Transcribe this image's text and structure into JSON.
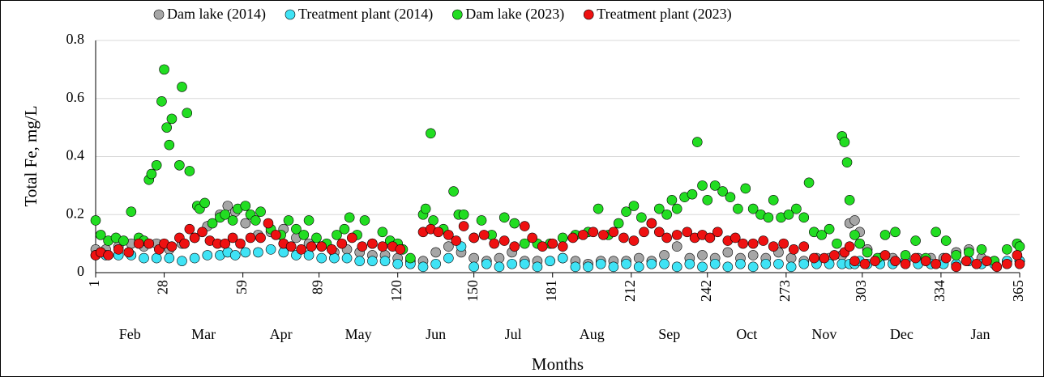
{
  "chart_data": {
    "type": "scatter",
    "y_label": "Total Fe, mg/L",
    "x_label": "Months",
    "xlim": [
      1,
      365
    ],
    "xticks": [
      1,
      28,
      59,
      89,
      120,
      150,
      181,
      212,
      242,
      273,
      303,
      334,
      365
    ],
    "ylim": [
      0,
      0.8
    ],
    "yticks": [
      0,
      0.2,
      0.4,
      0.6,
      0.8
    ],
    "grid": true,
    "legend": "top",
    "months": [
      "Feb",
      "Mar",
      "Apr",
      "May",
      "Jun",
      "Jul",
      "Aug",
      "Sep",
      "Oct",
      "Nov",
      "Dec",
      "Jan"
    ],
    "series": [
      {
        "name": "Dam lake (2014)",
        "color": "#a6a6a6",
        "x": [
          1,
          5,
          10,
          15,
          20,
          25,
          30,
          35,
          40,
          45,
          50,
          53,
          56,
          60,
          65,
          70,
          75,
          80,
          85,
          90,
          95,
          100,
          105,
          110,
          115,
          120,
          125,
          130,
          135,
          140,
          145,
          150,
          155,
          160,
          165,
          170,
          175,
          180,
          185,
          190,
          195,
          200,
          205,
          210,
          215,
          220,
          225,
          230,
          235,
          240,
          245,
          250,
          255,
          260,
          265,
          270,
          275,
          280,
          285,
          290,
          295,
          298,
          300,
          302,
          305,
          310,
          315,
          320,
          325,
          330,
          335,
          340,
          345,
          350,
          355,
          360,
          365
        ],
        "values": [
          0.08,
          0.08,
          0.09,
          0.1,
          0.09,
          0.1,
          0.08,
          0.1,
          0.12,
          0.16,
          0.2,
          0.23,
          0.21,
          0.17,
          0.13,
          0.14,
          0.15,
          0.12,
          0.1,
          0.09,
          0.07,
          0.08,
          0.07,
          0.06,
          0.06,
          0.05,
          0.04,
          0.04,
          0.07,
          0.09,
          0.07,
          0.05,
          0.04,
          0.05,
          0.07,
          0.04,
          0.04,
          0.04,
          0.05,
          0.04,
          0.03,
          0.04,
          0.04,
          0.04,
          0.05,
          0.04,
          0.06,
          0.09,
          0.05,
          0.06,
          0.05,
          0.07,
          0.05,
          0.06,
          0.05,
          0.07,
          0.05,
          0.04,
          0.05,
          0.05,
          0.06,
          0.17,
          0.18,
          0.14,
          0.08,
          0.05,
          0.05,
          0.04,
          0.05,
          0.05,
          0.05,
          0.07,
          0.08,
          0.05,
          0.04,
          0.04,
          0.04
        ]
      },
      {
        "name": "Treatment plant (2014)",
        "color": "#3fe3f5",
        "x": [
          1,
          5,
          10,
          15,
          20,
          25,
          30,
          35,
          40,
          45,
          50,
          53,
          56,
          60,
          65,
          70,
          75,
          80,
          85,
          90,
          95,
          100,
          105,
          110,
          115,
          120,
          125,
          130,
          135,
          140,
          145,
          150,
          155,
          160,
          165,
          170,
          175,
          180,
          185,
          190,
          195,
          200,
          205,
          210,
          215,
          220,
          225,
          230,
          235,
          240,
          245,
          250,
          255,
          260,
          265,
          270,
          275,
          280,
          285,
          290,
          295,
          298,
          300,
          302,
          305,
          310,
          315,
          320,
          325,
          330,
          335,
          340,
          345,
          350,
          355,
          360,
          365
        ],
        "values": [
          0.06,
          0.06,
          0.06,
          0.06,
          0.05,
          0.05,
          0.05,
          0.04,
          0.05,
          0.06,
          0.06,
          0.07,
          0.06,
          0.07,
          0.07,
          0.08,
          0.07,
          0.06,
          0.06,
          0.05,
          0.05,
          0.05,
          0.04,
          0.04,
          0.04,
          0.03,
          0.03,
          0.02,
          0.03,
          0.05,
          0.09,
          0.02,
          0.03,
          0.02,
          0.03,
          0.03,
          0.02,
          0.04,
          0.05,
          0.02,
          0.02,
          0.03,
          0.02,
          0.03,
          0.02,
          0.03,
          0.03,
          0.02,
          0.03,
          0.02,
          0.03,
          0.02,
          0.03,
          0.02,
          0.03,
          0.03,
          0.02,
          0.03,
          0.03,
          0.03,
          0.03,
          0.03,
          0.03,
          0.04,
          0.03,
          0.03,
          0.03,
          0.04,
          0.03,
          0.03,
          0.03,
          0.03,
          0.04,
          0.03,
          0.03,
          0.04,
          0.04
        ]
      },
      {
        "name": "Dam lake (2023)",
        "color": "#22dd22",
        "x": [
          1,
          3,
          6,
          9,
          12,
          15,
          18,
          20,
          22,
          23,
          25,
          27,
          28,
          29,
          30,
          31,
          34,
          35,
          37,
          38,
          41,
          42,
          44,
          47,
          50,
          52,
          55,
          57,
          60,
          62,
          64,
          66,
          70,
          74,
          77,
          80,
          83,
          85,
          88,
          92,
          96,
          99,
          101,
          104,
          107,
          110,
          114,
          117,
          120,
          122,
          125,
          130,
          131,
          133,
          134,
          138,
          142,
          144,
          146,
          150,
          153,
          157,
          162,
          166,
          170,
          175,
          180,
          185,
          190,
          195,
          199,
          203,
          207,
          210,
          213,
          216,
          220,
          223,
          226,
          228,
          230,
          233,
          236,
          238,
          240,
          242,
          245,
          248,
          251,
          254,
          257,
          260,
          263,
          266,
          268,
          271,
          274,
          277,
          280,
          282,
          284,
          287,
          290,
          293,
          295,
          296,
          297,
          298,
          300,
          302,
          305,
          309,
          312,
          316,
          320,
          324,
          328,
          332,
          336,
          340,
          345,
          350,
          355,
          360,
          364,
          365
        ],
        "values": [
          0.18,
          0.13,
          0.11,
          0.12,
          0.11,
          0.21,
          0.12,
          0.11,
          0.32,
          0.34,
          0.37,
          0.59,
          0.7,
          0.5,
          0.44,
          0.53,
          0.37,
          0.64,
          0.55,
          0.35,
          0.23,
          0.22,
          0.24,
          0.17,
          0.19,
          0.2,
          0.18,
          0.22,
          0.23,
          0.2,
          0.18,
          0.21,
          0.15,
          0.13,
          0.18,
          0.15,
          0.13,
          0.18,
          0.12,
          0.1,
          0.13,
          0.15,
          0.19,
          0.13,
          0.18,
          0.1,
          0.14,
          0.11,
          0.1,
          0.08,
          0.05,
          0.2,
          0.22,
          0.48,
          0.18,
          0.15,
          0.28,
          0.2,
          0.2,
          0.12,
          0.18,
          0.13,
          0.19,
          0.17,
          0.1,
          0.1,
          0.1,
          0.12,
          0.13,
          0.14,
          0.22,
          0.13,
          0.17,
          0.21,
          0.23,
          0.19,
          0.17,
          0.22,
          0.2,
          0.25,
          0.22,
          0.26,
          0.27,
          0.45,
          0.3,
          0.25,
          0.3,
          0.28,
          0.26,
          0.22,
          0.29,
          0.22,
          0.2,
          0.19,
          0.25,
          0.19,
          0.2,
          0.22,
          0.19,
          0.31,
          0.14,
          0.13,
          0.15,
          0.1,
          0.47,
          0.45,
          0.38,
          0.25,
          0.13,
          0.1,
          0.07,
          0.05,
          0.13,
          0.14,
          0.06,
          0.11,
          0.05,
          0.14,
          0.11,
          0.06,
          0.07,
          0.08,
          0.04,
          0.08,
          0.1,
          0.09
        ]
      },
      {
        "name": "Treatment plant (2023)",
        "color": "#ee1111",
        "x": [
          1,
          3,
          6,
          10,
          14,
          18,
          22,
          26,
          28,
          31,
          34,
          36,
          38,
          40,
          43,
          46,
          49,
          52,
          55,
          58,
          62,
          66,
          69,
          72,
          75,
          78,
          82,
          86,
          90,
          94,
          98,
          102,
          106,
          110,
          114,
          118,
          121,
          130,
          133,
          136,
          140,
          143,
          146,
          150,
          154,
          158,
          162,
          166,
          170,
          173,
          177,
          181,
          185,
          189,
          193,
          197,
          201,
          205,
          209,
          213,
          217,
          220,
          223,
          226,
          230,
          234,
          237,
          240,
          243,
          246,
          250,
          253,
          256,
          260,
          264,
          268,
          272,
          276,
          280,
          284,
          288,
          292,
          296,
          298,
          300,
          304,
          308,
          312,
          316,
          320,
          324,
          328,
          332,
          336,
          340,
          344,
          348,
          352,
          356,
          360,
          364,
          365
        ],
        "values": [
          0.06,
          0.07,
          0.06,
          0.08,
          0.07,
          0.1,
          0.1,
          0.08,
          0.1,
          0.09,
          0.12,
          0.1,
          0.15,
          0.12,
          0.14,
          0.11,
          0.1,
          0.1,
          0.12,
          0.1,
          0.12,
          0.12,
          0.17,
          0.13,
          0.1,
          0.09,
          0.08,
          0.09,
          0.09,
          0.08,
          0.1,
          0.12,
          0.09,
          0.1,
          0.09,
          0.09,
          0.08,
          0.14,
          0.15,
          0.14,
          0.13,
          0.11,
          0.16,
          0.12,
          0.13,
          0.1,
          0.11,
          0.09,
          0.16,
          0.12,
          0.09,
          0.1,
          0.09,
          0.12,
          0.13,
          0.14,
          0.13,
          0.14,
          0.12,
          0.11,
          0.14,
          0.17,
          0.14,
          0.12,
          0.13,
          0.14,
          0.12,
          0.13,
          0.12,
          0.14,
          0.11,
          0.12,
          0.1,
          0.1,
          0.11,
          0.09,
          0.1,
          0.08,
          0.09,
          0.05,
          0.05,
          0.06,
          0.07,
          0.09,
          0.04,
          0.03,
          0.04,
          0.06,
          0.04,
          0.03,
          0.05,
          0.04,
          0.03,
          0.05,
          0.02,
          0.04,
          0.03,
          0.04,
          0.02,
          0.03,
          0.06,
          0.03
        ]
      }
    ]
  }
}
